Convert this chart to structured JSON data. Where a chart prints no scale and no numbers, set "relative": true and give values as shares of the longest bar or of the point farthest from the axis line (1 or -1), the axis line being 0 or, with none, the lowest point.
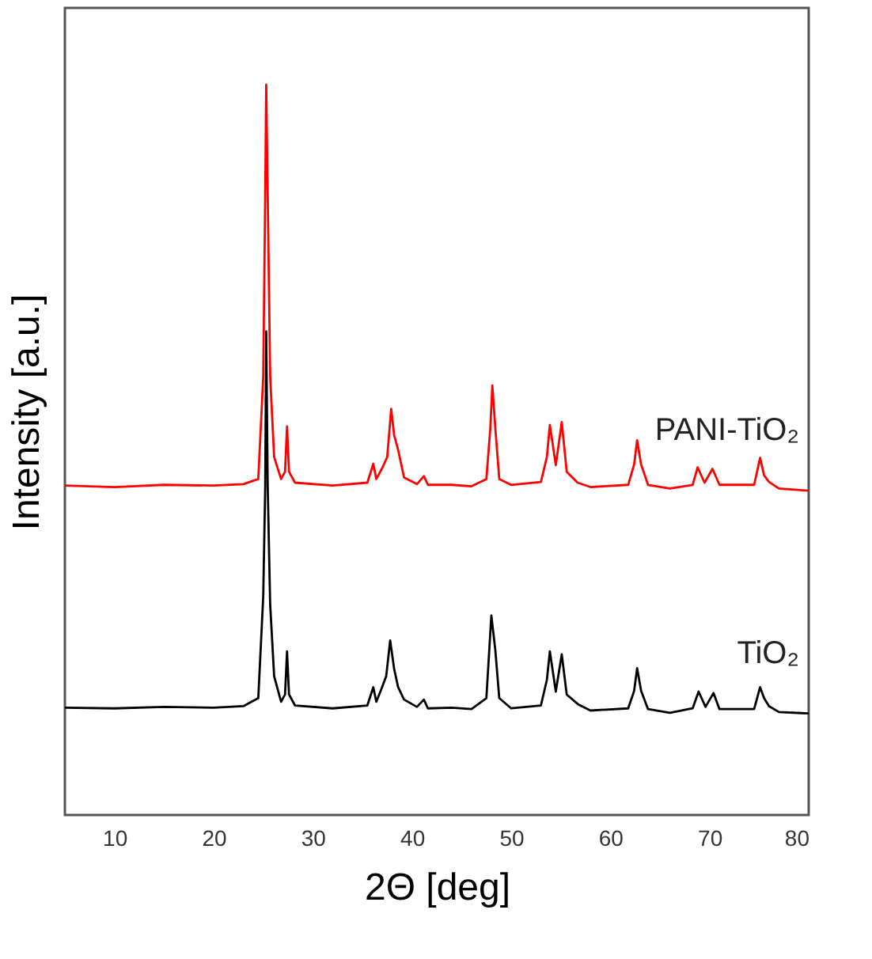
{
  "chart_data": {
    "type": "line",
    "relative": true,
    "xlabel": "2Θ [deg]",
    "ylabel": "Intensity [a.u.]",
    "xlim": [
      5,
      80
    ],
    "xticks": [
      10,
      20,
      30,
      40,
      50,
      60,
      70,
      80
    ],
    "legend": false,
    "grid": false,
    "tick_labels": "x",
    "series": [
      {
        "name": "PANI-TiO₂",
        "color": "#ff0000",
        "x": [
          5,
          10,
          15,
          20,
          23,
          24.5,
          25.0,
          25.2,
          25.3,
          25.45,
          25.7,
          26.1,
          26.8,
          27.2,
          27.4,
          27.6,
          28.2,
          32,
          35.5,
          36.1,
          36.4,
          37.0,
          37.5,
          37.9,
          38.2,
          38.6,
          39.2,
          40.5,
          41.2,
          41.6,
          44,
          46,
          47.5,
          47.9,
          48.1,
          48.4,
          48.8,
          50,
          53,
          53.6,
          53.9,
          54.5,
          55.1,
          55.6,
          56.7,
          58,
          61.8,
          62.4,
          62.7,
          63.1,
          63.8,
          66,
          68.3,
          68.8,
          69.5,
          70.3,
          71,
          74.5,
          75.1,
          75.5,
          76.0,
          77,
          80
        ],
        "values": [
          0.451,
          0.449,
          0.452,
          0.451,
          0.453,
          0.46,
          0.6,
          0.85,
          1.0,
          0.85,
          0.6,
          0.49,
          0.46,
          0.47,
          0.532,
          0.47,
          0.455,
          0.451,
          0.455,
          0.481,
          0.46,
          0.475,
          0.49,
          0.556,
          0.52,
          0.5,
          0.462,
          0.453,
          0.464,
          0.452,
          0.452,
          0.45,
          0.46,
          0.53,
          0.588,
          0.53,
          0.46,
          0.452,
          0.456,
          0.49,
          0.534,
          0.479,
          0.538,
          0.47,
          0.455,
          0.449,
          0.452,
          0.48,
          0.513,
          0.48,
          0.452,
          0.447,
          0.452,
          0.476,
          0.455,
          0.474,
          0.452,
          0.452,
          0.489,
          0.465,
          0.456,
          0.447,
          0.444
        ]
      },
      {
        "name": "TiO₂",
        "color": "#000000",
        "x": [
          5,
          10,
          15,
          20,
          23,
          24.5,
          25.0,
          25.2,
          25.3,
          25.45,
          25.7,
          26.1,
          26.8,
          27.2,
          27.4,
          27.6,
          28.2,
          32,
          35.5,
          36.1,
          36.4,
          36.9,
          37.4,
          37.8,
          38.2,
          38.6,
          39.2,
          40.5,
          41.2,
          41.6,
          44,
          46,
          47.5,
          48.0,
          48.4,
          48.8,
          50,
          53,
          53.6,
          53.9,
          54.5,
          55.1,
          55.6,
          56.8,
          58,
          61.8,
          62.4,
          62.7,
          63.1,
          63.8,
          66,
          68.3,
          68.9,
          69.6,
          70.4,
          71,
          74.5,
          75.1,
          75.5,
          76.0,
          77,
          80
        ],
        "values": [
          0.147,
          0.146,
          0.148,
          0.147,
          0.149,
          0.16,
          0.299,
          0.45,
          0.662,
          0.45,
          0.288,
          0.19,
          0.155,
          0.165,
          0.224,
          0.165,
          0.15,
          0.146,
          0.15,
          0.175,
          0.155,
          0.172,
          0.19,
          0.239,
          0.2,
          0.175,
          0.158,
          0.148,
          0.158,
          0.146,
          0.147,
          0.145,
          0.16,
          0.273,
          0.226,
          0.16,
          0.146,
          0.15,
          0.185,
          0.224,
          0.169,
          0.22,
          0.165,
          0.151,
          0.143,
          0.146,
          0.17,
          0.201,
          0.17,
          0.145,
          0.14,
          0.146,
          0.169,
          0.148,
          0.167,
          0.145,
          0.145,
          0.175,
          0.16,
          0.149,
          0.141,
          0.139
        ]
      }
    ]
  }
}
